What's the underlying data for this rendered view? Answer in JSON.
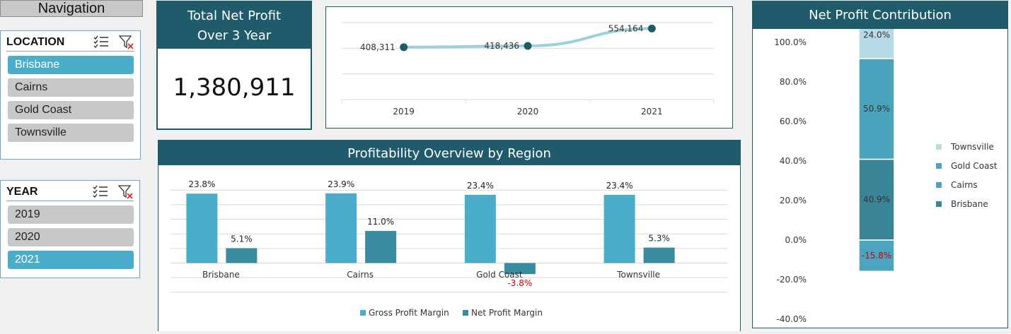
{
  "navigation": {
    "label": "Navigation"
  },
  "location_slicer": {
    "title": "LOCATION",
    "items": [
      {
        "label": "Brisbane",
        "selected": true
      },
      {
        "label": "Cairns",
        "selected": false
      },
      {
        "label": "Gold Coast",
        "selected": false
      },
      {
        "label": "Townsville",
        "selected": false
      }
    ]
  },
  "year_slicer": {
    "title": "YEAR",
    "items": [
      {
        "label": "2019",
        "selected": false
      },
      {
        "label": "2020",
        "selected": false
      },
      {
        "label": "2021",
        "selected": true
      }
    ]
  },
  "kpi": {
    "title_line1": "Total Net Profit",
    "title_line2": "Over 3 Year",
    "value": "1,380,911"
  },
  "colors": {
    "header": "#205b6b",
    "line": "#9bd0de",
    "marker": "#1f5a6a",
    "gross": "#4aadca",
    "net": "#3a8aa0",
    "townsville": "#b6dbe6",
    "gold_coast": "#4ba4c0",
    "cairns": "#4aa3bd",
    "brisbane": "#3a8497",
    "negative_label": "#cc0000"
  },
  "chart_data": [
    {
      "type": "line",
      "title": "",
      "x": [
        "2019",
        "2020",
        "2021"
      ],
      "values": [
        408311,
        418436,
        554164
      ],
      "value_labels": [
        "408,311",
        "418,436",
        "554,164"
      ],
      "ylim": [
        0,
        600000
      ],
      "grid": true
    },
    {
      "type": "bar",
      "title": "Profitability Overview by Region",
      "categories": [
        "Brisbane",
        "Cairns",
        "Gold Coast",
        "Townsville"
      ],
      "series": [
        {
          "name": "Gross Profit Margin",
          "values": [
            23.8,
            23.9,
            23.4,
            23.4
          ],
          "labels": [
            "23.8%",
            "23.9%",
            "23.4%",
            "23.4%"
          ]
        },
        {
          "name": "Net Profit Margin",
          "values": [
            5.1,
            11.0,
            -3.8,
            5.3
          ],
          "labels": [
            "5.1%",
            "11.0%",
            "-3.8%",
            "5.3%"
          ]
        }
      ],
      "ylim": [
        -10,
        25
      ],
      "grid": true,
      "legend": "bottom"
    },
    {
      "type": "bar",
      "stacked": true,
      "title": "Net Profit Contribution",
      "yticks": [
        "100.0%",
        "80.0%",
        "60.0%",
        "40.0%",
        "20.0%",
        "0.0%",
        "-20.0%",
        "-40.0%"
      ],
      "ylim": [
        -40,
        100
      ],
      "series": [
        {
          "name": "Brisbane",
          "value": 40.9,
          "label": "40.9%"
        },
        {
          "name": "Cairns",
          "value": 50.9,
          "label": "50.9%"
        },
        {
          "name": "Townsville",
          "value": 24.0,
          "label": "24.0%"
        },
        {
          "name": "Gold Coast",
          "value": -15.8,
          "label": "-15.8%"
        }
      ],
      "legend_order": [
        "Townsville",
        "Gold Coast",
        "Cairns",
        "Brisbane"
      ],
      "legend": "right"
    }
  ]
}
